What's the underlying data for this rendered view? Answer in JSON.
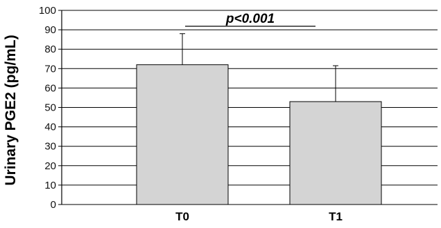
{
  "chart_data": {
    "type": "bar",
    "categories": [
      "T0",
      "T1"
    ],
    "values": [
      72,
      53
    ],
    "error_upper": [
      88,
      71.5
    ],
    "ylabel": "Urinary PGE2 (pg/mL)",
    "xlabel": "",
    "ylim": [
      0,
      100
    ],
    "yticks": [
      0,
      10,
      20,
      30,
      40,
      50,
      60,
      70,
      80,
      90,
      100
    ],
    "grid": true,
    "annotation": "p<0.001",
    "colors": {
      "bar_fill": "#d4d4d4",
      "bar_stroke": "#000000",
      "grid": "#000000"
    }
  }
}
